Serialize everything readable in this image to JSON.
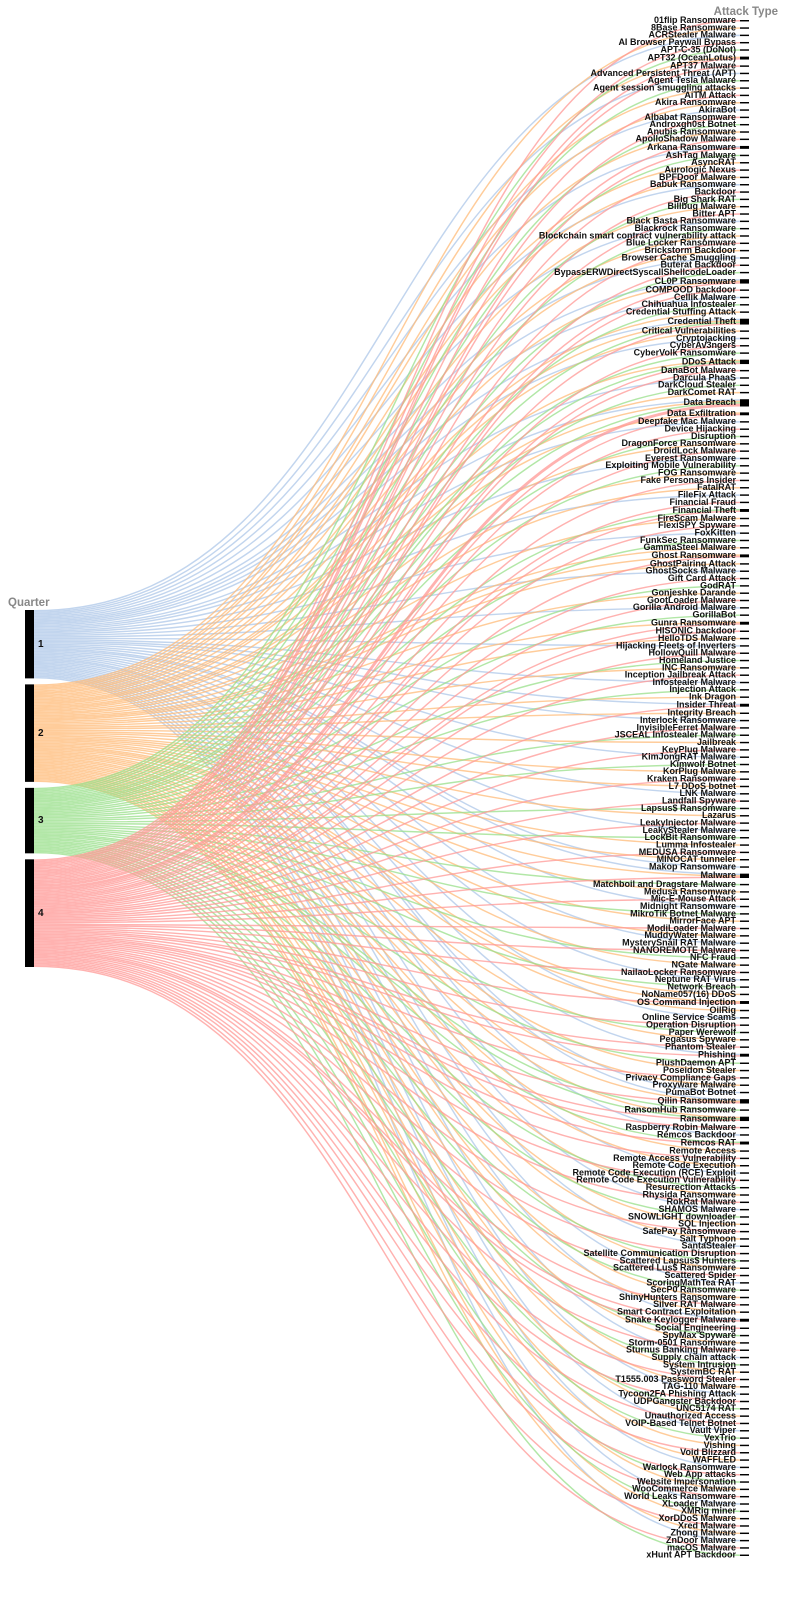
{
  "chart_data": {
    "type": "parallel_sets",
    "dimensions": [
      "Quarter",
      "Attack Type"
    ],
    "categories": [
      "01flip Ransomware",
      "8Base Ransomware",
      "ACRStealer Malware",
      "AI Browser Paywall Bypass",
      "APT-C-35 (DoNot)",
      "APT32 (OceanLotus)",
      "APT37 Malware",
      "Advanced Persistent Threat (APT)",
      "Agent Tesla Malware",
      "Agent session smuggling attacks",
      "AiTM Attack",
      "Akira Ransomware",
      "AkiraBot",
      "Albabat Ransomware",
      "Androxgh0st Botnet",
      "Anubis Ransomware",
      "ApolloShadow Malware",
      "Arkana Ransomware",
      "AshTag Malware",
      "AsyncRAT",
      "Aurologic Nexus",
      "BPFDoor Malware",
      "Babuk Ransomware",
      "Backdoor",
      "Big Shark RAT",
      "Billbug Malware",
      "Bitter APT",
      "Black Basta Ransomware",
      "Blackrock Ransomware",
      "Blockchain smart contract vulnerability attack",
      "Blue Locker Ransomware",
      "Brickstorm Backdoor",
      "Browser Cache Smuggling",
      "Buterat Backdoor",
      "BypassERWDirectSyscallShellcodeLoader",
      "CL0P Ransomware",
      "COMPOOD backdoor",
      "Cellik Malware",
      "Chihuahua Infostealer",
      "Credential Stuffing Attack",
      "Credential Theft",
      "Critical Vulnerabilities",
      "Cryptojacking",
      "CyberAv3ngers",
      "CyberVolk Ransomware",
      "DDoS Attack",
      "DanaBot Malware",
      "Darcula PhaaS",
      "DarkCloud Stealer",
      "DarkComet RAT",
      "Data Breach",
      "Data Exfiltration",
      "Deepfake Mac Malware",
      "Device Hijacking",
      "Disruption",
      "DragonForce Ransomware",
      "DroidLock Malware",
      "Everest Ransomware",
      "Exploiting Mobile Vulnerability",
      "FOG Ransomware",
      "Fake Personas Insider",
      "FatalRAT",
      "FileFix Attack",
      "Financial Fraud",
      "Financial Theft",
      "FireScam Malware",
      "FlexiSPY Spyware",
      "FoxKitten",
      "FunkSec Ransomware",
      "GammaSteel Malware",
      "Ghost Ransomware",
      "GhostPairing Attack",
      "GhostSocks Malware",
      "Gift Card Attack",
      "GodRAT",
      "Gonjeshke Darande",
      "GootLoader Malware",
      "Gorilla Android Malware",
      "GorillaBot",
      "Gunra Ransomware",
      "HISONIC backdoor",
      "HelloTDS Malware",
      "Hijacking Fleets of Inverters",
      "HollowQuill Malware",
      "Homeland Justice",
      "INC Ransomware",
      "Inception Jailbreak Attack",
      "Infostealer Malware",
      "Injection Attack",
      "Ink Dragon",
      "Insider Threat",
      "Integrity Breach",
      "Interlock Ransomware",
      "InvisibleFerret Malware",
      "JSCEAL Infostealer Malware",
      "Jailbreak",
      "KeyPlug Malware",
      "KimJongRAT Malware",
      "Kimwolf Botnet",
      "KorPlug Malware",
      "Kraken Ransomware",
      "L7 DDoS botnet",
      "LNK Malware",
      "Landfall Spyware",
      "Lapsus$ Ransomware",
      "Lazarus",
      "LeakyInjector Malware",
      "LeakyStealer Malware",
      "LockBit Ransomware",
      "Lumma Infostealer",
      "MEDUSA Ransomware",
      "MINOCAT tunneler",
      "Makop Ransomware",
      "Malware",
      "Matchboil and Dragstare Malware",
      "Medusa Ransomware",
      "Mic-E-Mouse Attack",
      "Midnight Ransomware",
      "MikroTik Botnet Malware",
      "MirrorFace APT",
      "ModiLoader Malware",
      "MuddyWater Malware",
      "MysterySnail RAT Malware",
      "NANOREMOTE Malware",
      "NFC Fraud",
      "NGate Malware",
      "NailaoLocker Ransomware",
      "Neptune RAT Virus",
      "Network Breach",
      "NoName057(16) DDoS",
      "OS Command Injection",
      "OilRig",
      "Online Service Scams",
      "Operation Disruption",
      "Paper Werewolf",
      "Pegasus Spyware",
      "Phantom Stealer",
      "Phishing",
      "PlushDaemon APT",
      "Poseidon Stealer",
      "Privacy Compliance Gaps",
      "Proxyware Malware",
      "PumaBot Botnet",
      "Qilin Ransomware",
      "RansomHub Ransomware",
      "Ransomware",
      "Raspberry Robin Malware",
      "Remcos Backdoor",
      "Remcos RAT",
      "Remote Access",
      "Remote Access Vulnerability",
      "Remote Code Execution",
      "Remote Code Execution (RCE) Exploit",
      "Remote Code Execution Vulnerability",
      "Resurrection Attacks",
      "Rhysida Ransomware",
      "RokRat Malware",
      "SHAMOS Malware",
      "SNOWLIGHT downloader",
      "SQL Injection",
      "SafePay Ransomware",
      "Salt Typhoon",
      "SantaStealer",
      "Satellite Communication Disruption",
      "Scattered Lapsus$ Hunters",
      "Scattered Lus$ Ransomware",
      "Scattered Spider",
      "ScoringMathTea RAT",
      "SecP0 Ransomware",
      "ShinyHunters Ransomware",
      "Silver RAT Malware",
      "Smart Contract Exploitation",
      "Snake Keylogger Malware",
      "Social Engineering",
      "SpyMax Spyware",
      "Storm-0501 Ransomware",
      "Sturnus Banking Malware",
      "Supply chain attack",
      "System Intrusion",
      "SystemBC RAT",
      "T1555.003 Password Stealer",
      "TAG-110 Malware",
      "Tycoon2FA Phishing Attack",
      "UDPGangster Backdoor",
      "UNC5174 RAT",
      "Unauthorized Access",
      "VOIP-Based Telnet Botnet",
      "Vault Viper",
      "VexTrio",
      "Vishing",
      "Void Blizzard",
      "WAFFLED",
      "Warlock Ransomware",
      "Web App attacks",
      "Website Impersonation",
      "WooCommerce Malware",
      "World Leaks Ransomware",
      "XLoader Malware",
      "XMRig miner",
      "XorDDoS Malware",
      "Xred Malware",
      "Zhong Malware",
      "ZnDoor Malware",
      "macOS Malware",
      "xHunt APT Backdoor"
    ],
    "series": [
      {
        "name": "1",
        "color": "#aec7e8",
        "values": [
          0,
          0,
          1,
          0,
          0,
          0,
          0,
          1,
          0,
          0,
          0,
          0,
          1,
          0,
          0,
          0,
          0,
          1,
          0,
          0,
          0,
          0,
          1,
          0,
          0,
          0,
          0,
          1,
          0,
          0,
          0,
          0,
          1,
          0,
          0,
          1,
          0,
          1,
          0,
          0,
          1,
          0,
          1,
          0,
          0,
          0,
          0,
          1,
          0,
          0,
          1,
          0,
          1,
          0,
          0,
          0,
          0,
          1,
          0,
          0,
          0,
          0,
          1,
          0,
          0,
          0,
          0,
          1,
          0,
          0,
          0,
          0,
          1,
          0,
          0,
          0,
          0,
          1,
          0,
          0,
          0,
          0,
          1,
          0,
          0,
          0,
          0,
          1,
          0,
          0,
          1,
          0,
          1,
          0,
          0,
          0,
          0,
          1,
          0,
          0,
          0,
          0,
          1,
          0,
          0,
          0,
          0,
          1,
          0,
          0,
          0,
          0,
          1,
          1,
          0,
          0,
          0,
          1,
          0,
          0,
          0,
          0,
          1,
          0,
          0,
          0,
          0,
          1,
          0,
          0,
          0,
          0,
          1,
          0,
          0,
          0,
          0,
          1,
          0,
          0,
          0,
          0,
          1,
          1,
          0,
          0,
          0,
          1,
          0,
          0,
          0,
          0,
          1,
          0,
          0,
          0,
          0,
          1,
          0,
          0,
          0,
          0,
          1,
          0,
          0,
          0,
          0,
          1,
          0,
          0,
          0,
          0,
          1,
          0,
          0,
          0,
          0,
          1,
          0,
          0,
          0,
          0,
          1,
          0,
          0,
          0,
          0,
          1,
          0,
          0,
          0,
          0,
          1,
          0,
          0,
          0,
          0,
          1,
          0,
          0,
          0,
          0,
          1,
          0,
          0
        ]
      },
      {
        "name": "2",
        "color": "#ffbb78",
        "values": [
          0,
          1,
          0,
          0,
          0,
          1,
          0,
          0,
          0,
          1,
          0,
          1,
          0,
          0,
          0,
          1,
          0,
          0,
          0,
          1,
          0,
          1,
          0,
          0,
          0,
          1,
          0,
          0,
          0,
          1,
          0,
          1,
          0,
          0,
          0,
          1,
          0,
          0,
          0,
          1,
          1,
          1,
          0,
          0,
          0,
          1,
          0,
          0,
          0,
          1,
          1,
          1,
          0,
          0,
          0,
          1,
          0,
          0,
          0,
          1,
          0,
          1,
          0,
          0,
          0,
          1,
          0,
          0,
          0,
          1,
          1,
          1,
          0,
          0,
          0,
          1,
          0,
          0,
          0,
          1,
          0,
          1,
          0,
          0,
          0,
          1,
          0,
          0,
          0,
          1,
          0,
          1,
          0,
          0,
          0,
          1,
          0,
          0,
          0,
          1,
          0,
          1,
          0,
          0,
          0,
          1,
          0,
          0,
          0,
          1,
          0,
          1,
          0,
          1,
          0,
          1,
          0,
          0,
          0,
          1,
          0,
          1,
          0,
          0,
          0,
          1,
          0,
          0,
          0,
          1,
          1,
          1,
          0,
          0,
          0,
          1,
          0,
          0,
          0,
          1,
          0,
          1,
          0,
          1,
          0,
          1,
          0,
          0,
          0,
          1,
          0,
          1,
          0,
          0,
          0,
          1,
          0,
          0,
          0,
          1,
          0,
          1,
          0,
          0,
          0,
          1,
          0,
          0,
          0,
          1,
          0,
          1,
          0,
          0,
          0,
          1,
          0,
          0,
          0,
          1,
          0,
          1,
          0,
          0,
          0,
          1,
          0,
          0,
          0,
          1,
          0,
          1,
          0,
          0,
          0,
          1,
          0,
          0,
          0,
          1,
          0,
          1,
          0,
          0,
          0
        ]
      },
      {
        "name": "3",
        "color": "#98df8a",
        "values": [
          0,
          0,
          0,
          0,
          1,
          0,
          0,
          0,
          1,
          0,
          0,
          0,
          0,
          0,
          1,
          0,
          0,
          0,
          1,
          0,
          0,
          0,
          0,
          0,
          1,
          0,
          0,
          0,
          1,
          0,
          0,
          0,
          0,
          0,
          1,
          0,
          0,
          0,
          1,
          0,
          1,
          0,
          0,
          0,
          1,
          1,
          0,
          0,
          1,
          0,
          1,
          0,
          0,
          0,
          1,
          0,
          0,
          0,
          1,
          0,
          0,
          0,
          0,
          0,
          1,
          0,
          0,
          0,
          1,
          0,
          0,
          0,
          0,
          0,
          1,
          0,
          0,
          0,
          1,
          0,
          0,
          0,
          0,
          0,
          1,
          0,
          0,
          0,
          1,
          0,
          0,
          0,
          0,
          0,
          1,
          0,
          0,
          0,
          1,
          0,
          0,
          0,
          0,
          0,
          1,
          0,
          0,
          0,
          1,
          0,
          0,
          0,
          0,
          0,
          1,
          0,
          0,
          0,
          1,
          0,
          0,
          0,
          0,
          0,
          1,
          0,
          0,
          0,
          1,
          0,
          0,
          0,
          0,
          0,
          1,
          0,
          0,
          0,
          1,
          0,
          0,
          0,
          0,
          0,
          1,
          1,
          0,
          0,
          1,
          0,
          0,
          0,
          0,
          0,
          1,
          0,
          0,
          0,
          1,
          0,
          0,
          0,
          0,
          0,
          1,
          0,
          0,
          0,
          1,
          0,
          0,
          0,
          0,
          0,
          1,
          0,
          0,
          0,
          1,
          0,
          0,
          0,
          0,
          0,
          1,
          0,
          0,
          0,
          1,
          0,
          0,
          0,
          0,
          0,
          1,
          0,
          0,
          0,
          1,
          0,
          0,
          0,
          0,
          0,
          1
        ]
      },
      {
        "name": "4",
        "color": "#ff9896",
        "values": [
          1,
          0,
          0,
          1,
          0,
          1,
          1,
          0,
          0,
          0,
          1,
          0,
          0,
          1,
          0,
          0,
          1,
          1,
          0,
          0,
          1,
          0,
          0,
          1,
          0,
          0,
          1,
          0,
          0,
          0,
          1,
          0,
          0,
          1,
          0,
          1,
          1,
          0,
          0,
          0,
          1,
          0,
          0,
          1,
          0,
          1,
          1,
          0,
          0,
          0,
          2,
          1,
          0,
          1,
          0,
          0,
          1,
          0,
          0,
          0,
          1,
          0,
          0,
          1,
          1,
          0,
          1,
          0,
          0,
          0,
          1,
          0,
          0,
          1,
          0,
          0,
          1,
          0,
          0,
          1,
          1,
          0,
          0,
          1,
          0,
          0,
          1,
          0,
          0,
          0,
          1,
          0,
          0,
          1,
          0,
          0,
          1,
          0,
          0,
          0,
          1,
          0,
          0,
          1,
          0,
          0,
          1,
          0,
          0,
          0,
          1,
          0,
          0,
          1,
          0,
          0,
          1,
          0,
          0,
          0,
          1,
          0,
          0,
          1,
          0,
          0,
          1,
          0,
          0,
          0,
          1,
          0,
          0,
          1,
          0,
          0,
          1,
          1,
          0,
          0,
          1,
          0,
          0,
          1,
          0,
          1,
          1,
          0,
          1,
          0,
          1,
          0,
          0,
          1,
          0,
          0,
          1,
          0,
          0,
          0,
          1,
          0,
          0,
          1,
          0,
          0,
          1,
          0,
          0,
          0,
          1,
          0,
          1,
          1,
          0,
          0,
          1,
          0,
          0,
          0,
          1,
          0,
          0,
          1,
          0,
          0,
          1,
          0,
          0,
          0,
          1,
          0,
          0,
          1,
          0,
          0,
          1,
          0,
          0,
          0,
          1,
          0,
          0,
          1,
          0
        ]
      }
    ],
    "node_color": "#000000"
  }
}
